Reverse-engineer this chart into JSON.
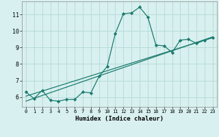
{
  "xlabel": "Humidex (Indice chaleur)",
  "bg_color": "#d8f0ef",
  "grid_color": "#b8dcd8",
  "line_color": "#1a7a6e",
  "xlim": [
    -0.5,
    23.5
  ],
  "ylim": [
    5.4,
    11.8
  ],
  "xticks": [
    0,
    1,
    2,
    3,
    4,
    5,
    6,
    7,
    8,
    9,
    10,
    11,
    12,
    13,
    14,
    15,
    16,
    17,
    18,
    19,
    20,
    21,
    22,
    23
  ],
  "yticks": [
    6,
    7,
    8,
    9,
    10,
    11
  ],
  "curve_x": [
    0,
    1,
    2,
    3,
    4,
    5,
    6,
    7,
    8,
    9,
    10,
    11,
    12,
    13,
    14,
    15,
    16,
    17,
    18,
    19,
    20,
    21,
    22,
    23
  ],
  "curve_y": [
    6.3,
    5.9,
    6.4,
    5.8,
    5.75,
    5.85,
    5.85,
    6.3,
    6.25,
    7.25,
    7.85,
    9.85,
    11.05,
    11.1,
    11.45,
    10.85,
    9.15,
    9.1,
    8.7,
    9.45,
    9.5,
    9.25,
    9.45,
    9.6
  ],
  "line1_x": [
    0,
    23
  ],
  "line1_y": [
    6.05,
    9.6
  ],
  "line2_x": [
    0,
    23
  ],
  "line2_y": [
    5.75,
    9.65
  ]
}
